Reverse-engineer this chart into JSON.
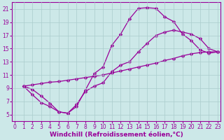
{
  "xlabel": "Windchill (Refroidissement éolien,°C)",
  "bg_color": "#cce8e8",
  "line_color": "#990099",
  "grid_color": "#aacccc",
  "xlim": [
    -0.3,
    23.3
  ],
  "ylim": [
    4.0,
    22.0
  ],
  "xticks": [
    0,
    1,
    2,
    3,
    4,
    5,
    6,
    7,
    8,
    9,
    10,
    11,
    12,
    13,
    14,
    15,
    16,
    17,
    18,
    19,
    20,
    21,
    22,
    23
  ],
  "yticks": [
    5,
    7,
    9,
    11,
    13,
    15,
    17,
    19,
    21
  ],
  "curve_upper_x": [
    1,
    2,
    3,
    4,
    5,
    6,
    7,
    8,
    9,
    10,
    11,
    12,
    13,
    14,
    15,
    16,
    17,
    18,
    19,
    20,
    21,
    22,
    23
  ],
  "curve_upper_y": [
    9.3,
    8.8,
    7.8,
    6.7,
    5.4,
    5.2,
    6.2,
    8.7,
    11.2,
    12.2,
    15.5,
    17.2,
    19.5,
    21.1,
    21.2,
    21.1,
    19.8,
    19.1,
    17.2,
    16.2,
    14.8,
    14.3,
    14.5
  ],
  "curve_lower_x": [
    1,
    2,
    3,
    4,
    5,
    6,
    7,
    8,
    9,
    10,
    11,
    12,
    13,
    14,
    15,
    16,
    17,
    18,
    19,
    20,
    21,
    22,
    23
  ],
  "curve_lower_y": [
    9.3,
    8.0,
    6.8,
    6.2,
    5.4,
    5.2,
    6.5,
    8.5,
    9.3,
    9.8,
    11.5,
    12.5,
    13.0,
    14.5,
    15.8,
    17.0,
    17.5,
    17.8,
    17.5,
    17.2,
    16.5,
    15.0,
    14.5
  ],
  "curve_diag_x": [
    1,
    2,
    3,
    4,
    5,
    6,
    7,
    8,
    9,
    10,
    11,
    12,
    13,
    14,
    15,
    16,
    17,
    18,
    19,
    20,
    21,
    22,
    23
  ],
  "curve_diag_y": [
    9.3,
    9.5,
    9.7,
    9.9,
    10.0,
    10.2,
    10.4,
    10.6,
    10.8,
    11.0,
    11.3,
    11.6,
    11.9,
    12.2,
    12.5,
    12.8,
    13.2,
    13.5,
    13.9,
    14.2,
    14.4,
    14.5,
    14.5
  ],
  "marker": "D",
  "marker_size": 2.5,
  "line_width": 0.9,
  "tick_fontsize": 5.5,
  "label_fontsize": 6.5
}
